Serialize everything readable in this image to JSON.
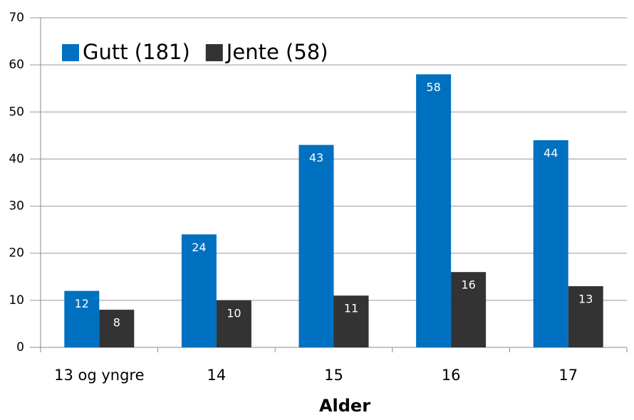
{
  "chart_data": {
    "type": "bar",
    "x_label": "Alder",
    "categories": [
      "13 og yngre",
      "14",
      "15",
      "16",
      "17"
    ],
    "series": [
      {
        "name": "Gutt (181)",
        "color": "#0070c0",
        "values": [
          12,
          24,
          43,
          58,
          44
        ]
      },
      {
        "name": "Jente (58)",
        "color": "#333333",
        "values": [
          8,
          10,
          11,
          16,
          13
        ]
      }
    ],
    "ylim": [
      0,
      70
    ],
    "yticks": [
      0,
      10,
      20,
      30,
      40,
      50,
      60,
      70
    ],
    "grid": true,
    "legend": "top-left"
  }
}
